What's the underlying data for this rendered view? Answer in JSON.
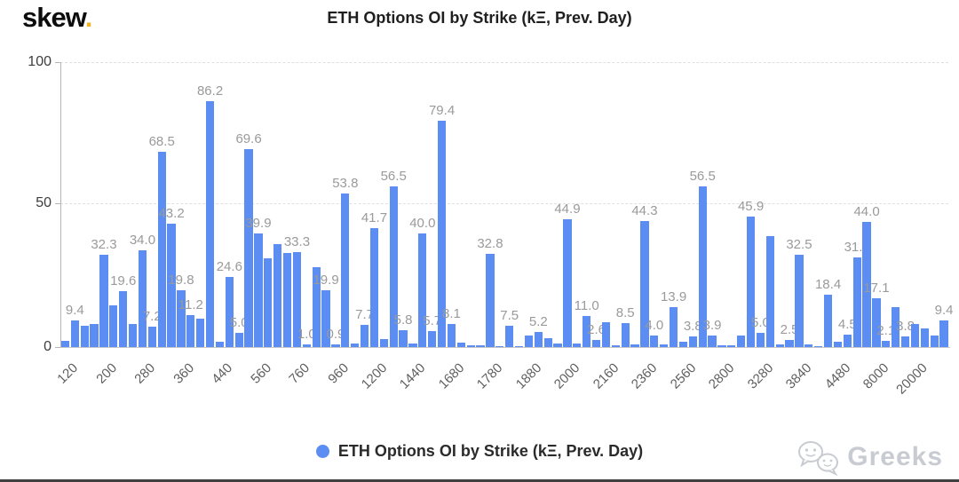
{
  "logo": {
    "text": "skew",
    "dot": "."
  },
  "title": "ETH Options OI by Strike (kΞ, Prev. Day)",
  "legend": {
    "label": "ETH Options OI by Strike (kΞ, Prev. Day)"
  },
  "watermark": {
    "text": "Greeks"
  },
  "colors": {
    "bar": "#5b8df2",
    "data_label": "#9a9a9a",
    "tick_label": "#5f5f5f",
    "grid": "#e0e0e0",
    "axis_line": "#b5b5b5",
    "title_text": "#1f1f1f",
    "logo_dot": "#f0b429",
    "watermark": "#c8ccd2"
  },
  "y_axis": {
    "labels": [
      "100",
      "50",
      "0"
    ]
  },
  "chart_data": {
    "type": "bar",
    "title": "ETH Options OI by Strike (kΞ, Prev. Day)",
    "legend_entries": [
      "ETH Options OI by Strike (kΞ, Prev. Day)"
    ],
    "legend_position": "bottom-center",
    "xlabel": "",
    "ylabel": "",
    "ylim": [
      0,
      100
    ],
    "yticks": [
      0,
      50,
      100
    ],
    "grid": "dashed-horizontal",
    "x_tick_labels": [
      "120",
      "200",
      "280",
      "360",
      "440",
      "560",
      "760",
      "960",
      "1200",
      "1440",
      "1680",
      "1780",
      "1880",
      "2000",
      "2160",
      "2360",
      "2560",
      "2800",
      "3280",
      "3840",
      "4480",
      "8000",
      "20000"
    ],
    "x_tick_every_n_bars": 4,
    "values": [
      2.2,
      9.4,
      7.5,
      8.0,
      32.3,
      14.5,
      19.6,
      8.0,
      34.0,
      7.2,
      68.5,
      43.2,
      19.8,
      11.2,
      10.0,
      86.2,
      1.9,
      24.6,
      5.0,
      69.6,
      39.9,
      31.0,
      36.0,
      33.0,
      33.3,
      1.0,
      28.0,
      19.9,
      0.9,
      53.8,
      1.2,
      7.7,
      41.7,
      2.9,
      56.5,
      5.8,
      1.4,
      40.0,
      5.7,
      79.4,
      8.1,
      1.5,
      0.5,
      0.5,
      32.8,
      0.3,
      7.5,
      0.3,
      4.1,
      5.2,
      3.0,
      1.2,
      44.9,
      1.2,
      11.0,
      2.6,
      8.6,
      0.5,
      8.5,
      1.0,
      44.3,
      4.0,
      1.0,
      13.9,
      2.0,
      3.8,
      56.5,
      3.9,
      0.5,
      0.5,
      4.0,
      45.9,
      5.0,
      39.0,
      1.0,
      2.5,
      32.5,
      1.0,
      0.3,
      18.4,
      2.0,
      4.5,
      31.4,
      44.0,
      17.1,
      2.1,
      14.0,
      3.8,
      8.0,
      6.5,
      4.0,
      9.4
    ],
    "data_labels": [
      "",
      "9.4",
      "",
      "",
      "32.3",
      "",
      "19.6",
      "",
      "34.0",
      "7.2",
      "68.5",
      "43.2",
      "19.8",
      "11.2",
      "",
      "86.2",
      "",
      "24.6",
      "5.0",
      "69.6",
      "39.9",
      "",
      "",
      "",
      "33.3",
      "1.0",
      "",
      "19.9",
      "0.9",
      "53.8",
      "",
      "7.7",
      "41.7",
      "",
      "56.5",
      "5.8",
      "",
      "40.0",
      "5.7",
      "79.4",
      "8.1",
      "",
      "",
      "",
      "32.8",
      "",
      "7.5",
      "",
      "",
      "5.2",
      "",
      "",
      "44.9",
      "",
      "11.0",
      "2.6",
      "",
      "",
      "8.5",
      "",
      "44.3",
      "4.0",
      "",
      "13.9",
      "",
      "3.8",
      "56.5",
      "3.9",
      "",
      "",
      "",
      "45.9",
      "5.0",
      "",
      "",
      "2.5",
      "32.5",
      "",
      "",
      "18.4",
      "",
      "4.5",
      "31.4",
      "44.0",
      "17.1",
      "2.1",
      "",
      "3.8",
      "",
      "",
      "",
      "9.4"
    ]
  }
}
